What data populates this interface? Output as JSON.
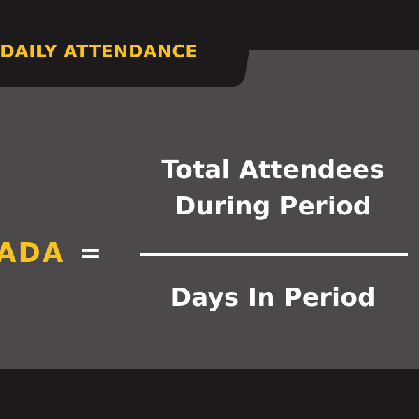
{
  "banner": {
    "title": "DAILY ATTENDANCE"
  },
  "formula": {
    "lhs": "ADA",
    "operator": "=",
    "numerator_line1": "Total Attendees",
    "numerator_line2": "During Period",
    "denominator": "Days In Period"
  },
  "colors": {
    "background": "#1c1a1b",
    "panel": "#4b494a",
    "accent": "#f7c31c",
    "text": "#ffffff"
  }
}
